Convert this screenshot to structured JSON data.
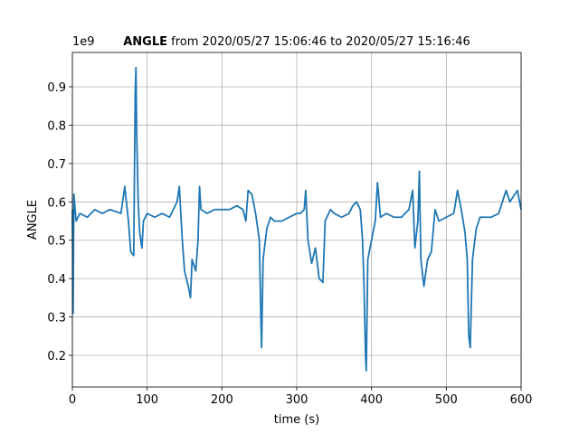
{
  "chart_data": {
    "type": "line",
    "title_parts": [
      "ANGLE",
      " from 2020/05/27 15:06:46 to 2020/05/27 15:16:46"
    ],
    "x_label": "time (s)",
    "y_label": "ANGLE",
    "y_offset_text": "1e9",
    "x": [
      0,
      1,
      2,
      5,
      10,
      20,
      30,
      40,
      50,
      65,
      70,
      75,
      78,
      82,
      84,
      85,
      86,
      88,
      90,
      93,
      95,
      100,
      110,
      120,
      130,
      140,
      143,
      147,
      150,
      155,
      158,
      160,
      165,
      168,
      170,
      172,
      180,
      190,
      200,
      210,
      220,
      228,
      232,
      235,
      240,
      245,
      250,
      252,
      253,
      255,
      260,
      265,
      270,
      280,
      290,
      300,
      305,
      310,
      312,
      315,
      320,
      325,
      330,
      335,
      338,
      345,
      350,
      360,
      370,
      375,
      380,
      385,
      388,
      390,
      392,
      393,
      395,
      400,
      405,
      408,
      412,
      420,
      430,
      440,
      450,
      455,
      458,
      462,
      464,
      466,
      470,
      475,
      480,
      485,
      490,
      500,
      510,
      515,
      520,
      525,
      528,
      530,
      532,
      535,
      540,
      545,
      550,
      560,
      570,
      575,
      580,
      585,
      595,
      600
    ],
    "series": [
      {
        "name": "ANGLE",
        "color": "#1f77b4",
        "values": [
          0.58,
          0.31,
          0.62,
          0.55,
          0.57,
          0.56,
          0.58,
          0.57,
          0.58,
          0.57,
          0.64,
          0.55,
          0.47,
          0.46,
          0.88,
          0.95,
          0.78,
          0.6,
          0.52,
          0.48,
          0.55,
          0.57,
          0.56,
          0.57,
          0.56,
          0.6,
          0.64,
          0.5,
          0.42,
          0.38,
          0.35,
          0.45,
          0.42,
          0.5,
          0.64,
          0.58,
          0.57,
          0.58,
          0.58,
          0.58,
          0.59,
          0.58,
          0.55,
          0.63,
          0.62,
          0.57,
          0.5,
          0.3,
          0.22,
          0.45,
          0.53,
          0.56,
          0.55,
          0.55,
          0.56,
          0.57,
          0.57,
          0.58,
          0.63,
          0.5,
          0.44,
          0.48,
          0.4,
          0.39,
          0.55,
          0.58,
          0.57,
          0.56,
          0.57,
          0.59,
          0.6,
          0.58,
          0.5,
          0.38,
          0.2,
          0.16,
          0.45,
          0.5,
          0.55,
          0.65,
          0.56,
          0.57,
          0.56,
          0.56,
          0.58,
          0.63,
          0.48,
          0.55,
          0.68,
          0.45,
          0.38,
          0.45,
          0.47,
          0.58,
          0.55,
          0.56,
          0.57,
          0.63,
          0.58,
          0.52,
          0.45,
          0.25,
          0.22,
          0.45,
          0.53,
          0.56,
          0.56,
          0.56,
          0.57,
          0.6,
          0.63,
          0.6,
          0.63,
          0.58
        ]
      }
    ],
    "xlim": [
      0,
      600
    ],
    "xticks": [
      0,
      100,
      200,
      300,
      400,
      500,
      600
    ],
    "ylim": [
      0.1175,
      0.9896
    ],
    "yticks": [
      0.2,
      0.3,
      0.4,
      0.5,
      0.6,
      0.7,
      0.8,
      0.9
    ],
    "grid": true
  }
}
